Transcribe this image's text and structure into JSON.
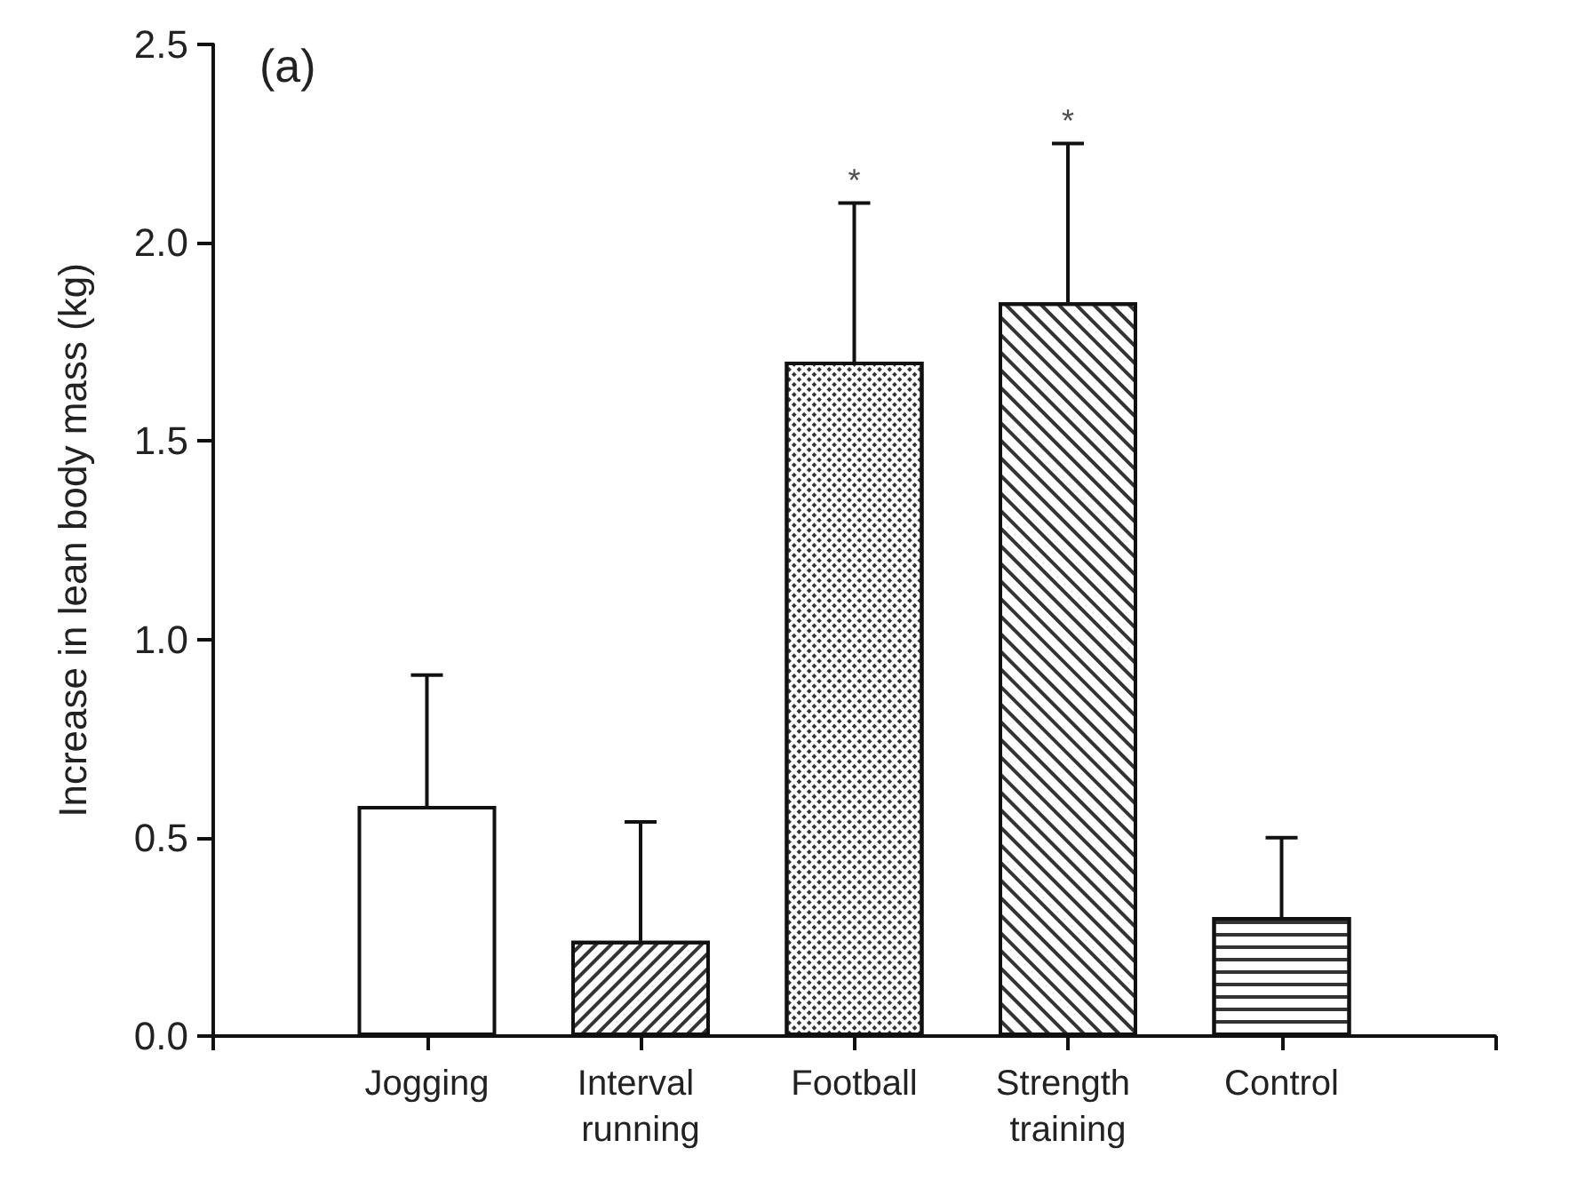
{
  "chart_data": {
    "type": "bar",
    "ylabel": "Increase in lean body mass (kg)",
    "categories": [
      "Jogging",
      "Interval running",
      "Football",
      "Strength training",
      "Control"
    ],
    "values": [
      0.58,
      0.24,
      1.7,
      1.85,
      0.3
    ],
    "errors": [
      [
        0.58,
        0.91
      ],
      [
        0.24,
        0.54
      ],
      [
        1.7,
        2.1
      ],
      [
        1.85,
        2.25
      ],
      [
        0.3,
        0.5
      ]
    ],
    "color": "#ffffff",
    "ylim": [
      0,
      2.5
    ],
    "yticks": [
      {
        "value": 0,
        "label": "0.0"
      },
      {
        "value": 0.5,
        "label": "0.5"
      },
      {
        "value": 1,
        "label": "1.0"
      },
      {
        "value": 1.5,
        "label": "1.5"
      },
      {
        "value": 2,
        "label": "2.0"
      },
      {
        "value": 2.5,
        "label": "2.5"
      }
    ],
    "grid": false,
    "annotations": [
      "(a)",
      {
        "text": "*",
        "x": "Football",
        "y": 2.1
      },
      {
        "text": "*",
        "x": "Strength training",
        "y": 2.25
      }
    ]
  }
}
